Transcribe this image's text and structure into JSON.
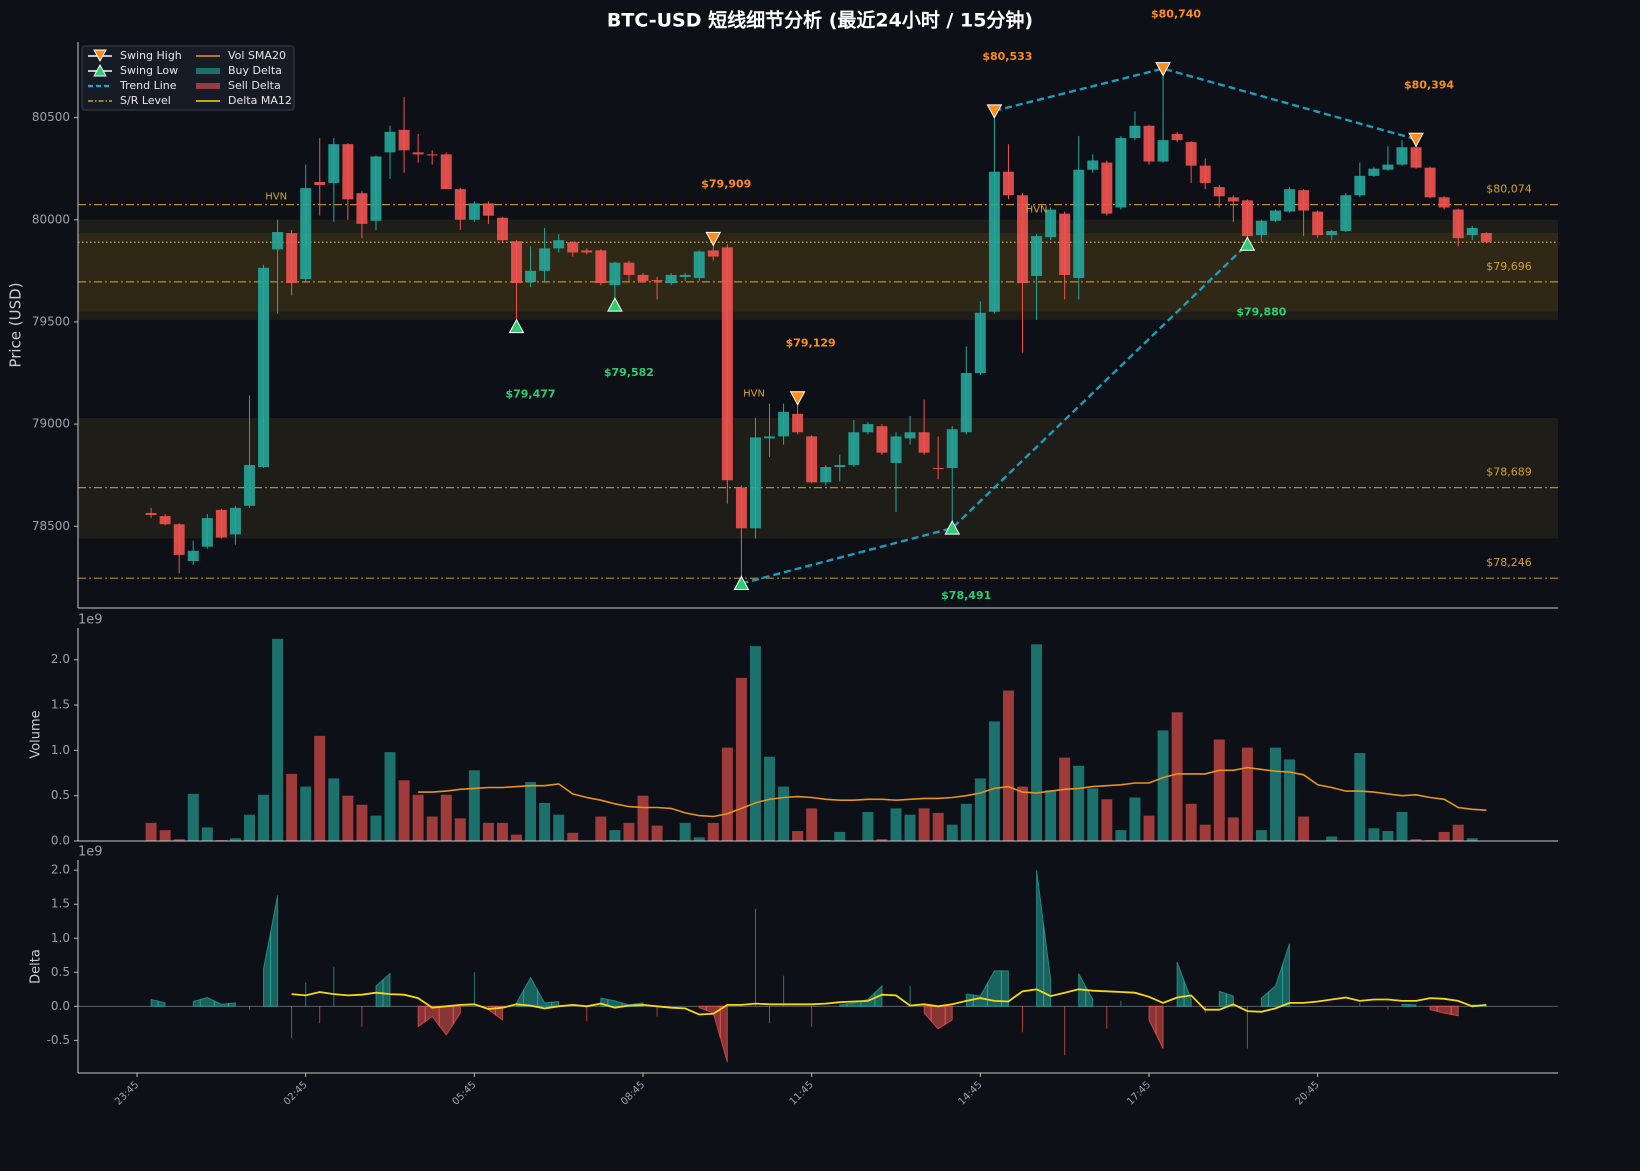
{
  "title": "BTC-USD 短线细节分析 (最近24小时 / 15分钟)",
  "chart_data": [
    {
      "type": "candlestick",
      "ylabel": "Price (USD)",
      "up_color": "#26a69a",
      "down_color": "#ef5350",
      "xlim": [
        -5.2,
        100.1
      ],
      "ylim": [
        78100,
        80870
      ],
      "yticks": [
        78500,
        79000,
        79500,
        80000,
        80500
      ],
      "open": [
        78565,
        78550,
        78510,
        78330,
        78400,
        78580,
        78460,
        78600,
        78790,
        79855,
        79935,
        79710,
        80185,
        80180,
        80370,
        80130,
        79995,
        80330,
        80440,
        80330,
        80320,
        80320,
        80150,
        80000,
        80080,
        80010,
        79895,
        79695,
        79750,
        79860,
        79890,
        79850,
        79850,
        79680,
        79790,
        79730,
        79705,
        79690,
        79720,
        79715,
        79850,
        79865,
        78690,
        78490,
        78930,
        78940,
        79050,
        78940,
        78715,
        78790,
        78800,
        78960,
        78990,
        78810,
        78930,
        78960,
        78785,
        78785,
        78960,
        79250,
        79550,
        80235,
        80120,
        79725,
        79915,
        80030,
        79715,
        80245,
        80280,
        80060,
        80400,
        80460,
        80285,
        80420,
        80380,
        80265,
        80160,
        80110,
        80095,
        79925,
        79995,
        80040,
        80145,
        80040,
        79925,
        79945,
        80120,
        80215,
        80245,
        80270,
        80355,
        80255,
        80110,
        80050,
        79925,
        79935
      ],
      "high": [
        78590,
        78560,
        78515,
        78430,
        78560,
        78585,
        78600,
        79140,
        79780,
        80000,
        79950,
        80270,
        80400,
        80400,
        80375,
        80140,
        80315,
        80460,
        80600,
        80420,
        80340,
        80330,
        80155,
        80090,
        80090,
        80015,
        79900,
        79870,
        79960,
        79930,
        79895,
        79860,
        79855,
        79795,
        79800,
        79740,
        79720,
        79740,
        79740,
        79850,
        79880,
        79880,
        78700,
        79030,
        79100,
        79100,
        79120,
        78945,
        78800,
        78850,
        79020,
        79010,
        79000,
        78960,
        79040,
        79120,
        78940,
        78990,
        79380,
        79600,
        80530,
        80370,
        80130,
        79930,
        80060,
        80040,
        80410,
        80320,
        80290,
        80410,
        80530,
        80465,
        80740,
        80430,
        80385,
        80300,
        80170,
        80120,
        80100,
        80000,
        80050,
        80160,
        80150,
        80045,
        79950,
        80130,
        80280,
        80260,
        80360,
        80390,
        80394,
        80260,
        80115,
        80055,
        79970,
        79940
      ],
      "low": [
        78540,
        78505,
        78270,
        78310,
        78390,
        78440,
        78410,
        78590,
        78785,
        79540,
        79630,
        79700,
        80020,
        79990,
        80000,
        79910,
        79950,
        80200,
        80230,
        80280,
        80270,
        80150,
        79950,
        79990,
        79980,
        79895,
        79460,
        79670,
        79700,
        79840,
        79820,
        79830,
        79680,
        79570,
        79700,
        79690,
        79610,
        79680,
        79700,
        79700,
        79800,
        78610,
        78220,
        78440,
        78840,
        78900,
        78950,
        78710,
        78700,
        78720,
        78790,
        78950,
        78850,
        78570,
        78900,
        78850,
        78730,
        78480,
        78950,
        79240,
        79540,
        80100,
        79350,
        79510,
        79900,
        79610,
        79610,
        80230,
        80020,
        80050,
        80390,
        80270,
        80280,
        80380,
        80180,
        80150,
        80060,
        79990,
        79880,
        79890,
        79990,
        80035,
        79920,
        79910,
        79900,
        79940,
        80110,
        80210,
        80240,
        80265,
        80250,
        80105,
        80050,
        79870,
        79900,
        79885
      ],
      "close": [
        78555,
        78510,
        78360,
        78380,
        78540,
        78445,
        78590,
        78800,
        79765,
        79940,
        79690,
        80155,
        80170,
        80370,
        80100,
        79980,
        80310,
        80430,
        80340,
        80320,
        80315,
        80150,
        80000,
        80080,
        80020,
        79900,
        79690,
        79750,
        79860,
        79900,
        79840,
        79840,
        79690,
        79790,
        79730,
        79700,
        79700,
        79730,
        79730,
        79845,
        79820,
        78725,
        78490,
        78935,
        78940,
        79060,
        78960,
        78715,
        78790,
        78800,
        78960,
        79000,
        78860,
        78940,
        78960,
        78860,
        78780,
        78975,
        79250,
        79545,
        80235,
        80120,
        79690,
        79920,
        80050,
        79730,
        80245,
        80290,
        80030,
        80400,
        80460,
        80285,
        80390,
        80390,
        80265,
        80180,
        80115,
        80090,
        79920,
        79995,
        80045,
        80150,
        80045,
        79925,
        79945,
        80120,
        80215,
        80250,
        80270,
        80355,
        80255,
        80110,
        80060,
        79910,
        79960,
        79890
      ],
      "zones": [
        {
          "low": 79510,
          "high": 80000
        },
        {
          "low": 79550,
          "high": 79935
        },
        {
          "low": 78440,
          "high": 79030
        }
      ],
      "zone_color": "#c8861e",
      "reference_line": 79890,
      "level_color": "#d4a02a",
      "levels": [
        {
          "value": 80074,
          "label": "$80,074"
        },
        {
          "value": 79696,
          "label": "$79,696"
        },
        {
          "value": 78689,
          "label": "$78,689"
        },
        {
          "value": 78246,
          "label": "$78,246"
        }
      ],
      "annotations": [
        {
          "x": 8.9,
          "y": 80115,
          "text": "HVN"
        },
        {
          "x": 63,
          "y": 80050,
          "text": "HVN"
        },
        {
          "x": 42.9,
          "y": 79150,
          "text": "HVN"
        }
      ],
      "swing_high_color": "#ff8c1a",
      "swing_low_color": "#2ecc71",
      "swing_highs": [
        {
          "x": 40,
          "y": 79909,
          "label": "$79,909"
        },
        {
          "x": 46,
          "y": 79129,
          "label": "$79,129"
        },
        {
          "x": 60,
          "y": 80533,
          "label": "$80,533"
        },
        {
          "x": 72,
          "y": 80740,
          "label": "$80,740"
        },
        {
          "x": 90,
          "y": 80394,
          "label": "$80,394"
        }
      ],
      "swing_lows": [
        {
          "x": 26,
          "y": 79477,
          "label": "$79,477"
        },
        {
          "x": 33,
          "y": 79582,
          "label": "$79,582"
        },
        {
          "x": 42,
          "y": 78220
        },
        {
          "x": 57,
          "y": 78491,
          "label": "$78,491"
        },
        {
          "x": 78,
          "y": 79880,
          "label": "$79,880"
        }
      ],
      "trend_color": "#1e9bb8",
      "trend_lines": [
        [
          {
            "x": 42,
            "y": 78220
          },
          {
            "x": 57,
            "y": 78491
          },
          {
            "x": 78,
            "y": 79880
          }
        ],
        [
          {
            "x": 60,
            "y": 80533
          },
          {
            "x": 72,
            "y": 80740
          },
          {
            "x": 90,
            "y": 80394
          }
        ]
      ],
      "legend": {
        "loc": "upper left",
        "entries": [
          {
            "name": "Swing High",
            "style": "tri-down",
            "color": "#ff8c1a"
          },
          {
            "name": "Swing Low",
            "style": "tri-up",
            "color": "#2ecc71"
          },
          {
            "name": "Trend Line",
            "style": "dashed",
            "color": "#1fa8c8"
          },
          {
            "name": "S/R Level",
            "style": "dashdot",
            "color": "#d4a02a"
          },
          {
            "name": "Vol SMA20",
            "style": "line",
            "color": "#e8921f"
          },
          {
            "name": "Buy Delta",
            "style": "patch",
            "color": "#26a69a"
          },
          {
            "name": "Sell Delta",
            "style": "patch",
            "color": "#ef5350"
          },
          {
            "name": "Delta MA12",
            "style": "line",
            "color": "#f5d716"
          }
        ]
      }
    },
    {
      "type": "bar",
      "ylabel": "Volume",
      "offset_label": "1e9",
      "xlim": [
        -5.2,
        100.1
      ],
      "ylim": [
        0,
        2.35
      ],
      "yticks": [
        {
          "value": 0,
          "label": "0.0"
        },
        0.5,
        {
          "value": 1,
          "label": "1.0"
        },
        1.5,
        {
          "value": 2,
          "label": "2.0"
        }
      ],
      "values": [
        0.2,
        0.12,
        0.02,
        0.52,
        0.15,
        0.01,
        0.03,
        0.29,
        0.51,
        2.23,
        0.74,
        0.6,
        1.16,
        0.69,
        0.5,
        0.4,
        0.28,
        0.98,
        0.67,
        0.51,
        0.27,
        0.51,
        0.25,
        0.78,
        0.2,
        0.2,
        0.07,
        0.65,
        0.42,
        0.29,
        0.09,
        0,
        0.27,
        0.12,
        0.2,
        0.5,
        0.17,
        0.01,
        0.2,
        0.04,
        0.2,
        1.03,
        1.8,
        2.15,
        0.93,
        0.6,
        0.11,
        0.36,
        0.01,
        0.1,
        0,
        0.32,
        0.02,
        0.36,
        0.29,
        0.36,
        0.31,
        0.18,
        0.41,
        0.69,
        1.32,
        1.66,
        0.6,
        2.17,
        0.56,
        0.92,
        0.83,
        0.58,
        0.46,
        0.12,
        0.48,
        0.28,
        1.22,
        1.42,
        0.41,
        0.18,
        1.12,
        0.26,
        1.03,
        0.12,
        1.03,
        0.9,
        0.27,
        0,
        0.05,
        0,
        0.97,
        0.14,
        0.11,
        0.32,
        0.02,
        0.01,
        0.1,
        0.18,
        0.03,
        0
      ],
      "sma": {
        "color": "#e8921f",
        "values": [
          null,
          null,
          null,
          null,
          null,
          null,
          null,
          null,
          null,
          null,
          null,
          null,
          null,
          null,
          null,
          null,
          null,
          null,
          null,
          0.54,
          0.54,
          0.55,
          0.57,
          0.58,
          0.59,
          0.59,
          0.6,
          0.61,
          0.61,
          0.63,
          0.52,
          0.48,
          0.45,
          0.41,
          0.38,
          0.37,
          0.37,
          0.36,
          0.31,
          0.28,
          0.27,
          0.3,
          0.36,
          0.42,
          0.46,
          0.48,
          0.49,
          0.48,
          0.46,
          0.45,
          0.45,
          0.46,
          0.46,
          0.45,
          0.46,
          0.47,
          0.47,
          0.48,
          0.5,
          0.53,
          0.58,
          0.6,
          0.54,
          0.53,
          0.55,
          0.57,
          0.58,
          0.6,
          0.61,
          0.62,
          0.64,
          0.64,
          0.7,
          0.74,
          0.74,
          0.74,
          0.78,
          0.78,
          0.81,
          0.79,
          0.77,
          0.76,
          0.73,
          0.62,
          0.59,
          0.55,
          0.55,
          0.54,
          0.52,
          0.5,
          0.51,
          0.48,
          0.46,
          0.37,
          0.35,
          0.34
        ]
      }
    },
    {
      "type": "area",
      "ylabel": "Delta",
      "offset_label": "1e9",
      "pos_color": "#26a69a",
      "neg_color": "#ef5350",
      "xlim": [
        -5.2,
        100.1
      ],
      "ylim": [
        -0.98,
        2.15
      ],
      "yticks": [
        -0.5,
        {
          "value": 0,
          "label": "0.0"
        },
        0.5,
        {
          "value": 1,
          "label": "1.0"
        },
        1.5,
        {
          "value": 2,
          "label": "2.0"
        }
      ],
      "xticks": [
        {
          "value": -1,
          "label": "23:45"
        },
        {
          "value": 11,
          "label": "02:45"
        },
        {
          "value": 23,
          "label": "05:45"
        },
        {
          "value": 35,
          "label": "08:45"
        },
        {
          "value": 47,
          "label": "11:45"
        },
        {
          "value": 59,
          "label": "14:45"
        },
        {
          "value": 71,
          "label": "17:45"
        },
        {
          "value": 83,
          "label": "20:45"
        }
      ],
      "values": [
        0.1,
        0.05,
        0,
        0.07,
        0.13,
        0.03,
        0.05,
        -0.05,
        0.55,
        1.63,
        -0.47,
        0.35,
        -0.25,
        0.58,
        0,
        -0.3,
        0.3,
        0.48,
        0,
        -0.3,
        -0.15,
        -0.42,
        -0.1,
        0.5,
        -0.05,
        -0.2,
        0.05,
        0.42,
        0.05,
        0.07,
        0,
        -0.22,
        0.12,
        0.08,
        0.02,
        0.05,
        -0.15,
        0,
        0,
        -0.02,
        -0.1,
        -0.82,
        0,
        1.43,
        -0.25,
        0.45,
        0,
        -0.3,
        0,
        0.02,
        0.05,
        0.1,
        0.3,
        0,
        0.3,
        -0.1,
        -0.33,
        -0.2,
        0.18,
        0.15,
        0.52,
        0.52,
        -0.38,
        2.0,
        0.4,
        -0.72,
        0.48,
        0.1,
        -0.33,
        0.08,
        0,
        -0.2,
        -0.62,
        0.65,
        0.1,
        -0.1,
        0.22,
        0.15,
        -0.62,
        0.12,
        0.3,
        0.92,
        0,
        0,
        0,
        0,
        0.05,
        0,
        -0.05,
        0.03,
        0.02,
        -0.05,
        -0.1,
        -0.14,
        0.02,
        0.01
      ],
      "ma": {
        "color": "#f5d716",
        "values": [
          null,
          null,
          null,
          null,
          null,
          null,
          null,
          null,
          null,
          null,
          0.18,
          0.16,
          0.21,
          0.18,
          0.16,
          0.17,
          0.2,
          0.18,
          0.17,
          0.12,
          -0.02,
          0,
          0.02,
          0.03,
          -0.04,
          -0.02,
          0.03,
          0.01,
          -0.03,
          0,
          0.02,
          0,
          0.04,
          -0.02,
          0.01,
          0.02,
          0,
          -0.02,
          -0.03,
          -0.12,
          -0.11,
          0.02,
          0.02,
          0.04,
          0.03,
          0.03,
          0.03,
          0.03,
          0.04,
          0.06,
          0.07,
          0.08,
          0.17,
          0.16,
          0.01,
          0.03,
          0,
          0.03,
          0.08,
          0.12,
          0.08,
          0.07,
          0.22,
          0.25,
          0.15,
          0.2,
          0.25,
          0.23,
          0.22,
          0.21,
          0.2,
          0.14,
          0.05,
          0.13,
          0.16,
          -0.05,
          -0.05,
          0.03,
          -0.07,
          -0.08,
          -0.03,
          0.05,
          0.05,
          0.07,
          0.1,
          0.13,
          0.08,
          0.1,
          0.1,
          0.08,
          0.08,
          0.12,
          0.11,
          0.08,
          0,
          0.02
        ]
      }
    }
  ]
}
